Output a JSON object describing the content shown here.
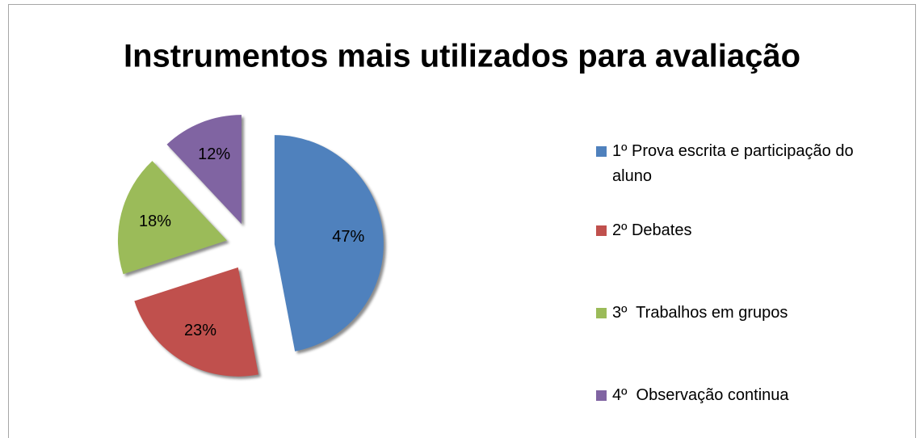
{
  "chart_data": {
    "type": "pie",
    "title": "Instrumentos mais utilizados para avaliação",
    "categories": [
      "1º Prova escrita e participação do aluno",
      "2º Debates",
      "3º  Trabalhos em grupos",
      "4º  Observação continua"
    ],
    "values": [
      47,
      23,
      18,
      12
    ],
    "value_labels": [
      "47%",
      "23%",
      "18%",
      "12%"
    ],
    "colors": [
      "#4f81bd",
      "#c0504d",
      "#9bbb59",
      "#8064a2"
    ],
    "legend": "right"
  }
}
